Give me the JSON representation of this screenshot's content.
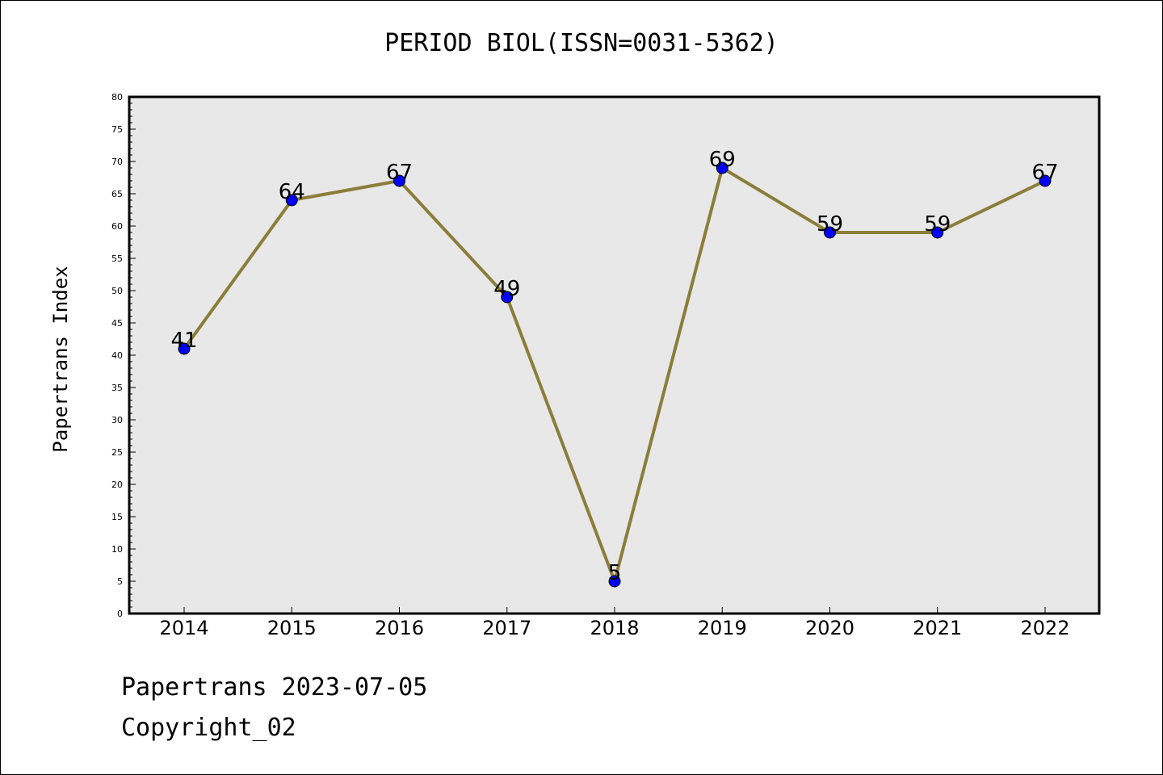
{
  "chart_data": {
    "type": "line",
    "title": "PERIOD BIOL(ISSN=0031-5362)",
    "xlabel": "",
    "ylabel": "Papertrans Index",
    "categories": [
      "2014",
      "2015",
      "2016",
      "2017",
      "2018",
      "2019",
      "2020",
      "2021",
      "2022"
    ],
    "series": [
      {
        "values": [
          41,
          64,
          67,
          49,
          5,
          69,
          59,
          59,
          67
        ]
      }
    ],
    "data_labels": [
      "41",
      "64",
      "67",
      "49",
      "5",
      "69",
      "59",
      "59",
      "67"
    ],
    "ylim": [
      0,
      80
    ],
    "yticks": [
      0,
      5,
      10,
      15,
      20,
      25,
      30,
      35,
      40,
      45,
      50,
      55,
      60,
      65,
      70,
      75,
      80
    ],
    "ytick_labels": [
      "0",
      "5",
      "10",
      "15",
      "20",
      "25",
      "30",
      "35",
      "40",
      "45",
      "50",
      "55",
      "60",
      "65",
      "70",
      "75",
      "80"
    ],
    "grid": false,
    "legend": "none",
    "colors": {
      "line": "#8b7d3a",
      "marker": "#0000ff",
      "plot_background": "#e8e8e8"
    }
  },
  "footer": {
    "line1": "Papertrans 2023-07-05",
    "line2": "Copyright_02"
  }
}
